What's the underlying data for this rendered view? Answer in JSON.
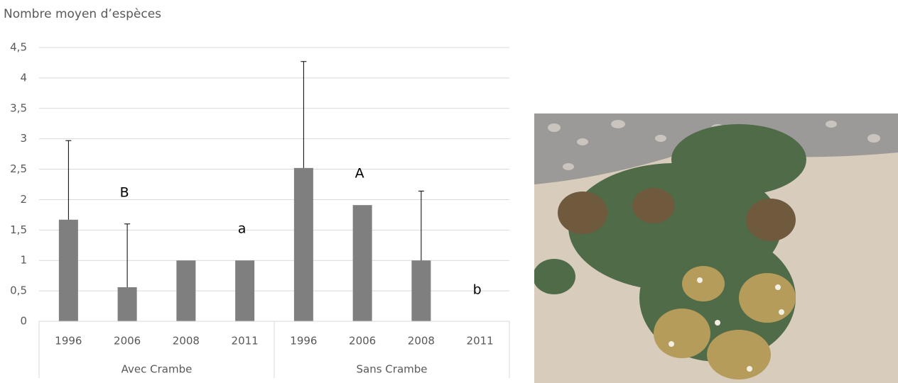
{
  "chart_data": {
    "type": "bar",
    "title": "Nombre moyen d’espèces",
    "categories": [
      "1996",
      "2006",
      "2008",
      "2011",
      "1996",
      "2006",
      "2008",
      "2011"
    ],
    "groups": [
      "Avec Crambe",
      "Sans Crambe"
    ],
    "values": [
      1.67,
      0.56,
      1.0,
      1.0,
      2.52,
      1.91,
      1.0,
      0
    ],
    "errors": [
      1.3,
      1.04,
      null,
      null,
      1.75,
      null,
      1.14,
      null
    ],
    "annotations": [
      null,
      "B",
      null,
      "a",
      null,
      "A",
      null,
      "b"
    ],
    "color": "#7f7f7f",
    "ylim": [
      0,
      4.5
    ],
    "yticks": [
      0,
      {
        "value": 0.5,
        "label": "0,5"
      },
      1,
      {
        "value": 1.5,
        "label": "1,5"
      },
      2,
      {
        "value": 2.5,
        "label": "2,5"
      },
      3,
      {
        "value": 3.5,
        "label": "3,5"
      },
      4,
      {
        "value": 4.5,
        "label": "4,5"
      }
    ],
    "grid": true
  }
}
